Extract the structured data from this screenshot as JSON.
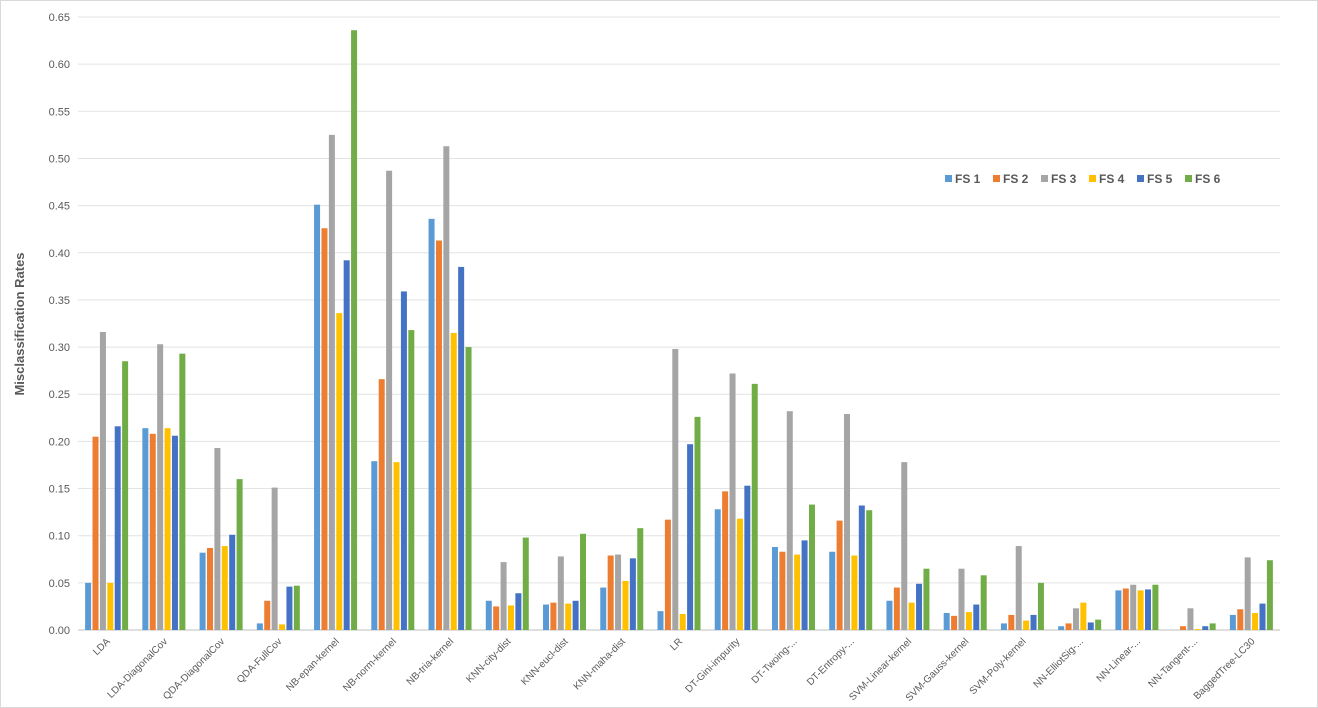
{
  "chart_data": {
    "type": "bar",
    "title": "",
    "xlabel": "",
    "ylabel": "Misclassification Rates",
    "ylim": [
      0,
      0.65
    ],
    "yticks": [
      "0.00",
      "0.05",
      "0.10",
      "0.15",
      "0.20",
      "0.25",
      "0.30",
      "0.35",
      "0.40",
      "0.45",
      "0.50",
      "0.55",
      "0.60",
      "0.65"
    ],
    "grid": true,
    "legend_position": "upper-right",
    "categories": [
      "LDA",
      "LDA-DiagonalCov",
      "QDA-DiagonalCov",
      "QDA-FullCov",
      "NB-epan-kernel",
      "NB-norm-kernel",
      "NB-tria-kernel",
      "KNN-city-dist",
      "KNN-eucl-dist",
      "KNN-maha-dist",
      "LR",
      "DT-Gini-impurity",
      "DT-Twoing-...",
      "DT-Entropy-...",
      "SVM-Linear-kernel",
      "SVM-Gauss-kernel",
      "SVM-Poly-kernel",
      "NN-ElliotSig-...",
      "NN-Linear-...",
      "NN-Tangent-...",
      "BaggedTree-LC30"
    ],
    "series": [
      {
        "name": "FS 1",
        "color": "#5b9bd5",
        "values": [
          0.05,
          0.214,
          0.082,
          0.007,
          0.451,
          0.179,
          0.436,
          0.031,
          0.027,
          0.045,
          0.02,
          0.128,
          0.088,
          0.083,
          0.031,
          0.018,
          0.007,
          0.004,
          0.042,
          0.0,
          0.016
        ]
      },
      {
        "name": "FS 2",
        "color": "#ed7d31",
        "values": [
          0.205,
          0.208,
          0.087,
          0.031,
          0.426,
          0.266,
          0.413,
          0.025,
          0.029,
          0.079,
          0.117,
          0.147,
          0.083,
          0.116,
          0.045,
          0.015,
          0.016,
          0.007,
          0.044,
          0.004,
          0.022
        ]
      },
      {
        "name": "FS 3",
        "color": "#a5a5a5",
        "values": [
          0.316,
          0.303,
          0.193,
          0.151,
          0.525,
          0.487,
          0.513,
          0.072,
          0.078,
          0.08,
          0.298,
          0.272,
          0.232,
          0.229,
          0.178,
          0.065,
          0.089,
          0.023,
          0.048,
          0.023,
          0.077
        ]
      },
      {
        "name": "FS 4",
        "color": "#ffc000",
        "values": [
          0.05,
          0.214,
          0.089,
          0.006,
          0.336,
          0.178,
          0.315,
          0.026,
          0.028,
          0.052,
          0.017,
          0.118,
          0.08,
          0.079,
          0.029,
          0.019,
          0.01,
          0.029,
          0.042,
          0.001,
          0.018
        ]
      },
      {
        "name": "FS 5",
        "color": "#4472c4",
        "values": [
          0.216,
          0.206,
          0.101,
          0.046,
          0.392,
          0.359,
          0.385,
          0.039,
          0.031,
          0.076,
          0.197,
          0.153,
          0.095,
          0.132,
          0.049,
          0.027,
          0.016,
          0.008,
          0.043,
          0.004,
          0.028
        ]
      },
      {
        "name": "FS 6",
        "color": "#70ad47",
        "values": [
          0.285,
          0.293,
          0.16,
          0.047,
          0.636,
          0.318,
          0.3,
          0.098,
          0.102,
          0.108,
          0.226,
          0.261,
          0.133,
          0.127,
          0.065,
          0.058,
          0.05,
          0.011,
          0.048,
          0.007,
          0.074
        ]
      }
    ]
  }
}
